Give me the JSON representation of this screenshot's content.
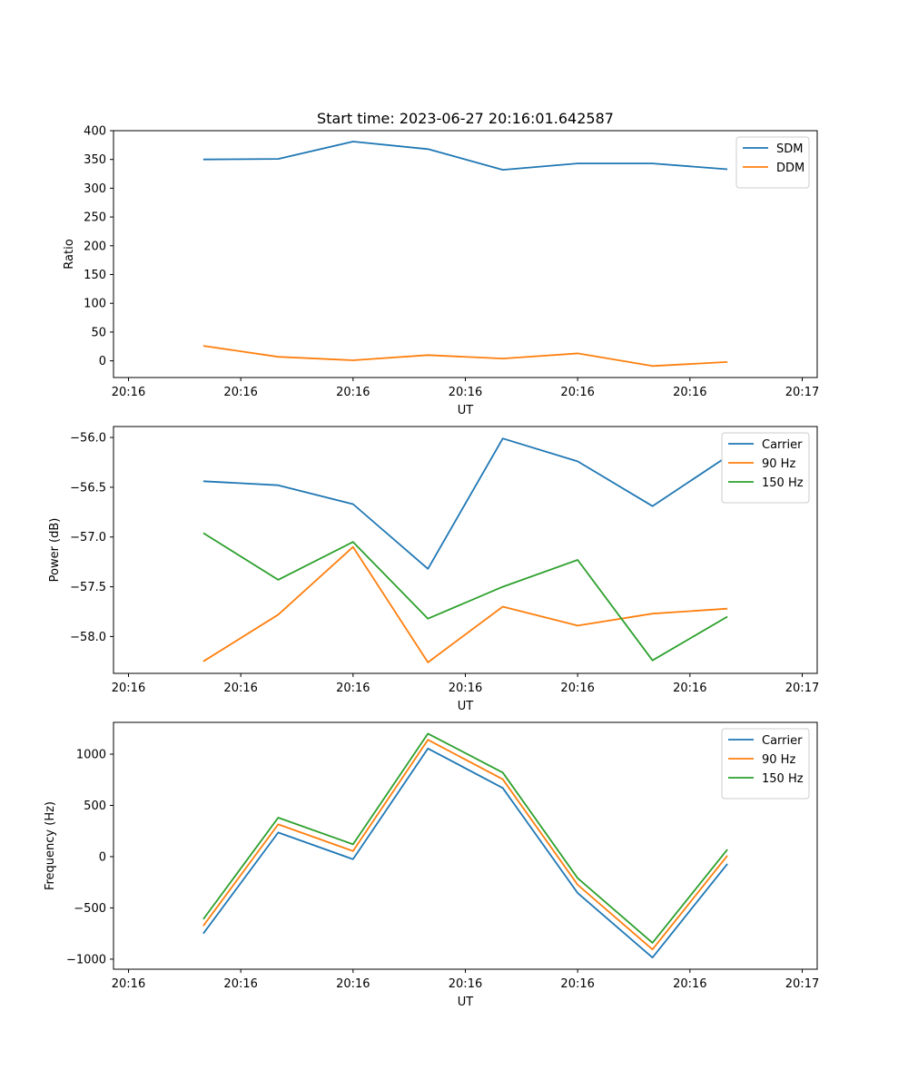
{
  "chart_data": [
    {
      "type": "line",
      "title": "Start time: 2023-06-27 20:16:01.642587",
      "xlabel": "UT",
      "ylabel": "Ratio",
      "x": [
        1,
        2,
        3,
        4,
        5,
        6,
        7,
        8
      ],
      "xlim": [
        -0.2,
        9.2
      ],
      "xticks": [
        0,
        1.5,
        3,
        4.5,
        6,
        7.5,
        9
      ],
      "xtick_labels": [
        "20:16",
        "20:16",
        "20:16",
        "20:16",
        "20:16",
        "20:16",
        "20:17"
      ],
      "ylim": [
        -29,
        400
      ],
      "yticks": [
        0,
        50,
        100,
        150,
        200,
        250,
        300,
        350,
        400
      ],
      "ytick_labels": [
        "0",
        "50",
        "100",
        "150",
        "200",
        "250",
        "300",
        "350",
        "400"
      ],
      "legend": "top-right",
      "grid": false,
      "series": [
        {
          "name": "SDM",
          "color": "#1f77b4",
          "values": [
            350,
            351,
            381,
            368,
            332,
            343,
            343,
            333
          ]
        },
        {
          "name": "DDM",
          "color": "#ff7f0e",
          "values": [
            26,
            7,
            1,
            10,
            4,
            13,
            -9,
            -2
          ]
        }
      ]
    },
    {
      "type": "line",
      "xlabel": "UT",
      "ylabel": "Power (dB)",
      "x": [
        1,
        2,
        3,
        4,
        5,
        6,
        7,
        8
      ],
      "xlim": [
        -0.2,
        9.2
      ],
      "xticks": [
        0,
        1.5,
        3,
        4.5,
        6,
        7.5,
        9
      ],
      "xtick_labels": [
        "20:16",
        "20:16",
        "20:16",
        "20:16",
        "20:16",
        "20:16",
        "20:17"
      ],
      "ylim": [
        -58.37,
        -55.89
      ],
      "yticks": [
        -58.0,
        -57.5,
        -57.0,
        -56.5,
        -56.0
      ],
      "ytick_labels": [
        "−58.0",
        "−57.5",
        "−57.0",
        "−56.5",
        "−56.0"
      ],
      "legend": "top-right",
      "grid": false,
      "series": [
        {
          "name": "Carrier",
          "color": "#1f77b4",
          "values": [
            -56.44,
            -56.48,
            -56.67,
            -57.32,
            -56.01,
            -56.24,
            -56.69,
            -56.19
          ]
        },
        {
          "name": "90 Hz",
          "color": "#ff7f0e",
          "values": [
            -58.25,
            -57.78,
            -57.1,
            -58.26,
            -57.7,
            -57.89,
            -57.77,
            -57.72
          ]
        },
        {
          "name": "150 Hz",
          "color": "#2ca02c",
          "values": [
            -56.96,
            -57.43,
            -57.05,
            -57.82,
            -57.5,
            -57.23,
            -58.24,
            -57.8
          ]
        }
      ]
    },
    {
      "type": "line",
      "xlabel": "UT",
      "ylabel": "Frequency (Hz)",
      "x": [
        1,
        2,
        3,
        4,
        5,
        6,
        7,
        8
      ],
      "xlim": [
        -0.2,
        9.2
      ],
      "xticks": [
        0,
        1.5,
        3,
        4.5,
        6,
        7.5,
        9
      ],
      "xtick_labels": [
        "20:16",
        "20:16",
        "20:16",
        "20:16",
        "20:16",
        "20:16",
        "20:17"
      ],
      "ylim": [
        -1098,
        1310
      ],
      "yticks": [
        -1000,
        -500,
        0,
        500,
        1000
      ],
      "ytick_labels": [
        "−1000",
        "−500",
        "0",
        "500",
        "1000"
      ],
      "legend": "top-right",
      "grid": false,
      "series": [
        {
          "name": "Carrier",
          "color": "#1f77b4",
          "values": [
            -750,
            235,
            -25,
            1055,
            670,
            -355,
            -985,
            -70
          ]
        },
        {
          "name": "90 Hz",
          "color": "#ff7f0e",
          "values": [
            -675,
            315,
            55,
            1140,
            755,
            -275,
            -905,
            10
          ]
        },
        {
          "name": "150 Hz",
          "color": "#2ca02c",
          "values": [
            -610,
            380,
            120,
            1200,
            820,
            -210,
            -840,
            70
          ]
        }
      ]
    }
  ]
}
